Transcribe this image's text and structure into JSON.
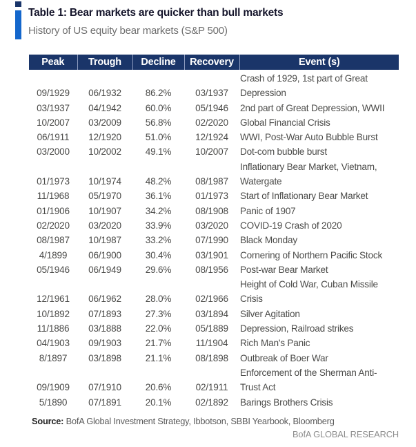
{
  "header": {
    "title": "Table 1: Bear markets are quicker than bull markets",
    "subtitle": "History of US equity bear markets (S&P 500)"
  },
  "colors": {
    "header_bg": "#1a3569",
    "accent_bar": "#1467cc",
    "accent_dot": "#1a3569"
  },
  "chart_data": {
    "type": "table",
    "title": "Table 1: Bear markets are quicker than bull markets",
    "subtitle": "History of US equity bear markets (S&P 500)",
    "columns": [
      "Peak",
      "Trough",
      "Decline",
      "Recovery",
      "Event (s)"
    ],
    "rows": [
      {
        "peak": "09/1929",
        "trough": "06/1932",
        "decline": "86.2%",
        "recovery": "03/1937",
        "event": "Crash of 1929, 1st part of Great\nDepression"
      },
      {
        "peak": "03/1937",
        "trough": "04/1942",
        "decline": "60.0%",
        "recovery": "05/1946",
        "event": "2nd part of Great Depression, WWII"
      },
      {
        "peak": "10/2007",
        "trough": "03/2009",
        "decline": "56.8%",
        "recovery": "02/2020",
        "event": "Global Financial Crisis"
      },
      {
        "peak": "06/1911",
        "trough": "12/1920",
        "decline": "51.0%",
        "recovery": "12/1924",
        "event": "WWI, Post-War Auto Bubble Burst"
      },
      {
        "peak": "03/2000",
        "trough": "10/2002",
        "decline": "49.1%",
        "recovery": "10/2007",
        "event": "Dot-com bubble burst"
      },
      {
        "peak": "01/1973",
        "trough": "10/1974",
        "decline": "48.2%",
        "recovery": "08/1987",
        "event": "Inflationary Bear Market, Vietnam,\nWatergate"
      },
      {
        "peak": "11/1968",
        "trough": "05/1970",
        "decline": "36.1%",
        "recovery": "01/1973",
        "event": "Start of Inflationary Bear Market"
      },
      {
        "peak": "01/1906",
        "trough": "10/1907",
        "decline": "34.2%",
        "recovery": "08/1908",
        "event": "Panic of 1907"
      },
      {
        "peak": "02/2020",
        "trough": "03/2020",
        "decline": "33.9%",
        "recovery": "03/2020",
        "event": "COVID-19 Crash of 2020"
      },
      {
        "peak": "08/1987",
        "trough": "10/1987",
        "decline": "33.2%",
        "recovery": "07/1990",
        "event": "Black Monday"
      },
      {
        "peak": "4/1899",
        "trough": "06/1900",
        "decline": "30.4%",
        "recovery": "03/1901",
        "event": "Cornering of Northern Pacific Stock"
      },
      {
        "peak": "05/1946",
        "trough": "06/1949",
        "decline": "29.6%",
        "recovery": "08/1956",
        "event": "Post-war Bear Market"
      },
      {
        "peak": "12/1961",
        "trough": "06/1962",
        "decline": "28.0%",
        "recovery": "02/1966",
        "event": "Height of Cold War, Cuban Missile\nCrisis"
      },
      {
        "peak": "10/1892",
        "trough": "07/1893",
        "decline": "27.3%",
        "recovery": "03/1894",
        "event": "Silver Agitation"
      },
      {
        "peak": "11/1886",
        "trough": "03/1888",
        "decline": "22.0%",
        "recovery": "05/1889",
        "event": "Depression, Railroad strikes"
      },
      {
        "peak": "04/1903",
        "trough": "09/1903",
        "decline": "21.7%",
        "recovery": "11/1904",
        "event": "Rich Man's Panic"
      },
      {
        "peak": "8/1897",
        "trough": "03/1898",
        "decline": "21.1%",
        "recovery": "08/1898",
        "event": "Outbreak of Boer War"
      },
      {
        "peak": "09/1909",
        "trough": "07/1910",
        "decline": "20.6%",
        "recovery": "02/1911",
        "event": "Enforcement of the Sherman Anti-\nTrust Act"
      },
      {
        "peak": "5/1890",
        "trough": "07/1891",
        "decline": "20.1%",
        "recovery": "02/1892",
        "event": "Barings Brothers Crisis"
      }
    ]
  },
  "footer": {
    "source_label": "Source:",
    "source_text": "BofA Global Investment Strategy, Ibbotson, SBBI Yearbook, Bloomberg",
    "branding": "BofA GLOBAL RESEARCH"
  }
}
